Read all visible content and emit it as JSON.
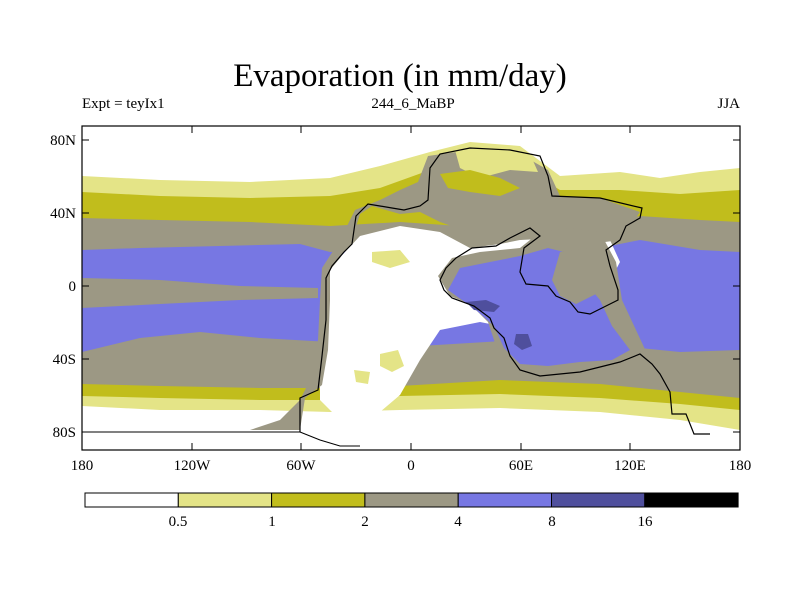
{
  "title": "Evaporation (in mm/day)",
  "subtitle": {
    "left": "Expt = teyIx1",
    "center": "244_6_MaBP",
    "right": "JJA"
  },
  "axes": {
    "x_ticks": [
      "180",
      "120W",
      "60W",
      "0",
      "60E",
      "120E",
      "180"
    ],
    "y_ticks": [
      "80N",
      "40N",
      "0",
      "40S",
      "80S"
    ]
  },
  "legend": {
    "boundaries": [
      "0.5",
      "1",
      "2",
      "4",
      "8",
      "16"
    ],
    "colors": [
      "#ffffff",
      "#e4e487",
      "#c1bd1c",
      "#9c9884",
      "#7777e3",
      "#4f4f9d",
      "#000000"
    ]
  },
  "palette": {
    "ocean_low": "#e4e487",
    "ocean_mid": "#c1bd1c",
    "grey": "#9c9884",
    "blue": "#7777e3",
    "dark_blue": "#4f4f9d"
  }
}
